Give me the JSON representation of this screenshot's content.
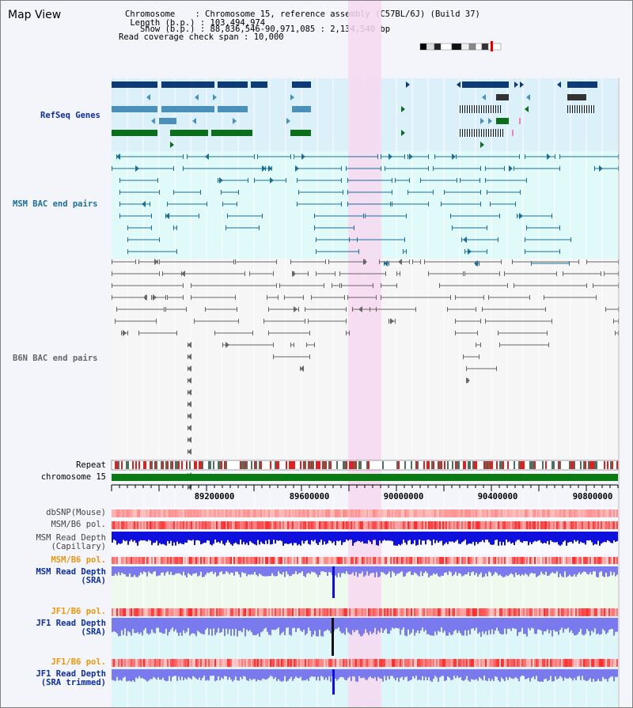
{
  "app_title": "Map View",
  "info": {
    "chromosome_label": "Chromosome",
    "chromosome_value": "Chromosome 15, reference assembly (C57BL/6J) (Build 37)",
    "length_label": "Length (b.p.)",
    "length_value": "103,494,974",
    "show_label": "Show (b.p.)",
    "show_value": "88,836,546-90,971,085 : 2,134,540 bp",
    "coverage_label": "Read coverage check span",
    "coverage_value": "10,000",
    "separator": ":"
  },
  "tracks": {
    "refseq": "RefSeq Genes",
    "msm_bac": "MSM BAC end pairs",
    "b6n_bac": "B6N BAC end pairs",
    "repeat": "Repeat",
    "chromosome": "chromosome 15",
    "dbsnp": "dbSNP(Mouse)",
    "msm_b6_pol": "MSM/B6 pol.",
    "msm_depth_cap_1": "MSM Read Depth",
    "msm_depth_cap_2": "(Capillary)",
    "msm_b6_pol_2": "MSM/B6 pol.",
    "msm_depth_sra_1": "MSM Read Depth",
    "msm_depth_sra_2": "(SRA)",
    "jf1_b6_pol": "JF1/B6 pol.",
    "jf1_depth_sra_1": "JF1 Read Depth",
    "jf1_depth_sra_2": "(SRA)",
    "jf1_b6_pol_2": "JF1/B6 pol.",
    "jf1_depth_trim_1": "JF1 Read Depth",
    "jf1_depth_trim_2": "(SRA trimmed)"
  },
  "axis_ticks": [
    "89200000",
    "89600000",
    "90000000",
    "90400000",
    "90800000"
  ],
  "colors": {
    "refseq_dark": "#0d3a78",
    "refseq_mid": "#4a90b8",
    "refseq_green": "#0a6e1a",
    "msm_bac": "#1a6f9a",
    "b6n_bac": "#666666",
    "highlight": "#f7d8f0",
    "label_blue": "#0c2f9a",
    "label_orange": "#e8960a",
    "depth_dark": "#1010dd",
    "depth_light": "#7a7aee"
  }
}
